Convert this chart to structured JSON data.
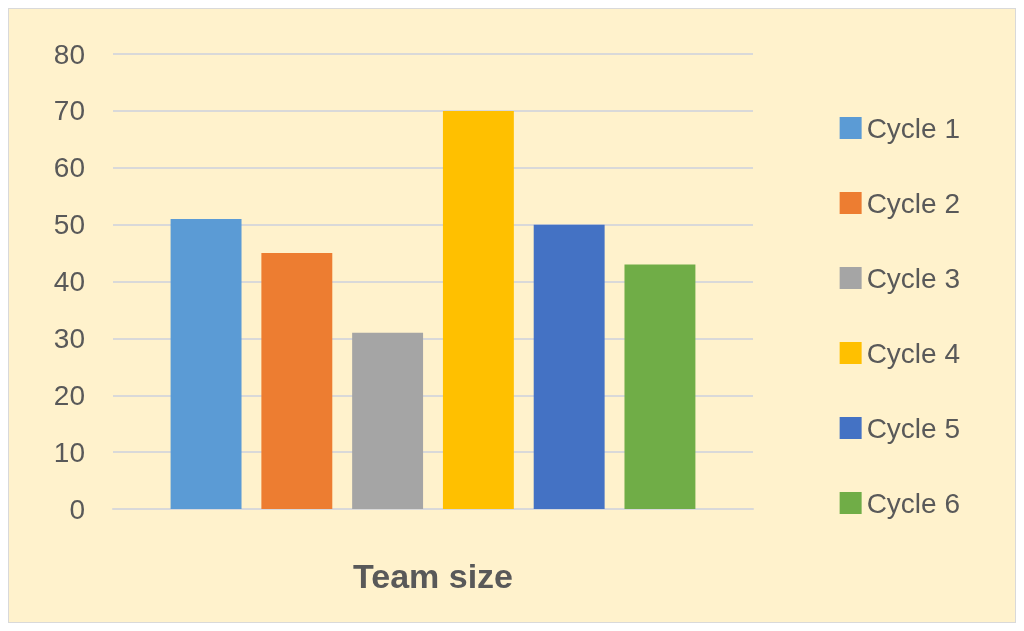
{
  "chart_data": {
    "type": "bar",
    "xlabel": "Team size",
    "categories": [
      null
    ],
    "series": [
      {
        "name": "Cycle 1",
        "color": "#5b9bd5",
        "values": [
          51
        ]
      },
      {
        "name": "Cycle 2",
        "color": "#ed7d31",
        "values": [
          45
        ]
      },
      {
        "name": "Cycle 3",
        "color": "#a5a5a5",
        "values": [
          31
        ]
      },
      {
        "name": "Cycle 4",
        "color": "#ffc000",
        "values": [
          70
        ]
      },
      {
        "name": "Cycle 5",
        "color": "#4472c4",
        "values": [
          50
        ]
      },
      {
        "name": "Cycle 6",
        "color": "#70ad47",
        "values": [
          43
        ]
      }
    ],
    "ylim": [
      0,
      80
    ],
    "yticks": [
      0,
      10,
      20,
      30,
      40,
      50,
      60,
      70,
      80
    ],
    "grid": "y",
    "legend": "right"
  }
}
